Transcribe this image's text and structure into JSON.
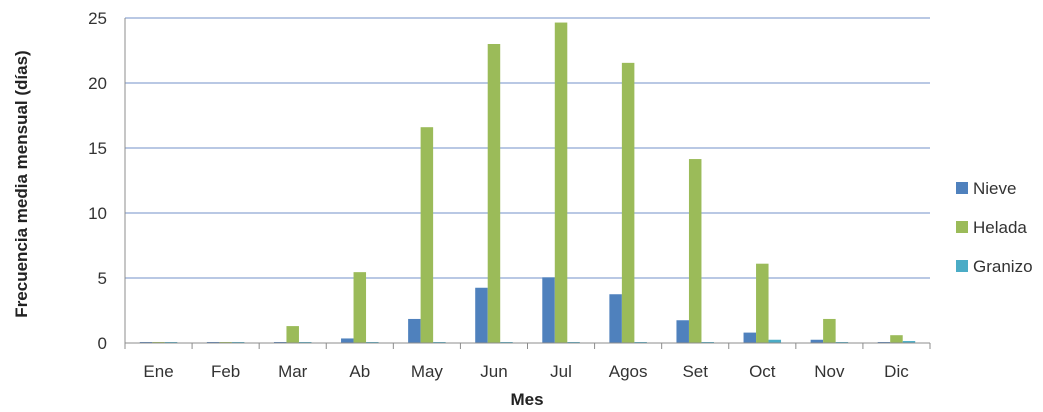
{
  "chart_data": {
    "type": "bar",
    "title": "",
    "xlabel": "Mes",
    "ylabel": "Frecuencia media mensual (días)",
    "ylim": [
      0,
      25
    ],
    "yticks": [
      0,
      5,
      10,
      15,
      20,
      25
    ],
    "grid": true,
    "legend_position": "right",
    "categories": [
      "Ene",
      "Feb",
      "Mar",
      "Ab",
      "May",
      "Jun",
      "Jul",
      "Agos",
      "Set",
      "Oct",
      "Nov",
      "Dic"
    ],
    "series": [
      {
        "name": "Nieve",
        "color": "#4f81bd",
        "values": [
          0.05,
          0.05,
          0.05,
          0.35,
          1.85,
          4.25,
          5.05,
          3.75,
          1.75,
          0.8,
          0.25,
          0.05
        ]
      },
      {
        "name": "Helada",
        "color": "#9bbb59",
        "values": [
          0.05,
          0.05,
          1.3,
          5.45,
          16.6,
          23.0,
          24.65,
          21.55,
          14.15,
          6.1,
          1.85,
          0.6
        ]
      },
      {
        "name": "Granizo",
        "color": "#4bacc6",
        "values": [
          0.05,
          0.05,
          0.05,
          0.05,
          0.05,
          0.05,
          0.05,
          0.05,
          0.05,
          0.25,
          0.05,
          0.15
        ]
      }
    ]
  }
}
